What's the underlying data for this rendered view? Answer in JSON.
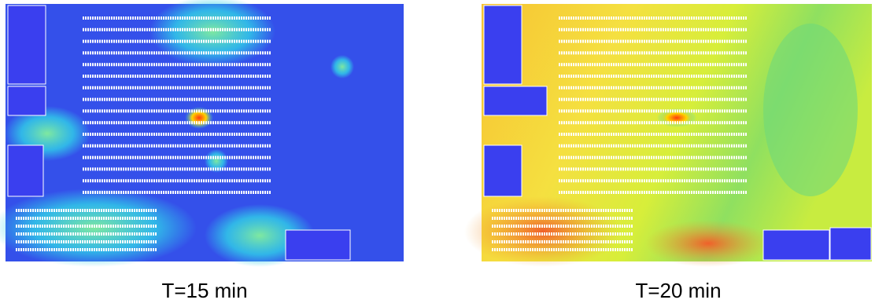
{
  "panels": [
    {
      "label": "T=15 min"
    },
    {
      "label": "T=20 min"
    }
  ]
}
